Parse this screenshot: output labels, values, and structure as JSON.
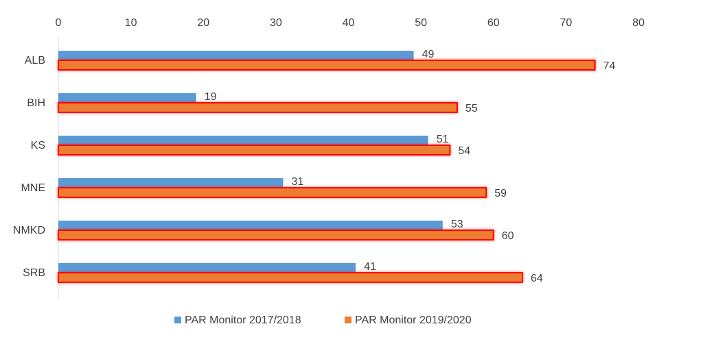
{
  "chart_data": {
    "type": "bar",
    "orientation": "horizontal",
    "categories": [
      "ALB",
      "BIH",
      "KS",
      "MNE",
      "NMKD",
      "SRB"
    ],
    "series": [
      {
        "name": "PAR Monitor 2017/2018",
        "values": [
          49,
          19,
          51,
          31,
          53,
          41
        ],
        "color": "#5b9bd5"
      },
      {
        "name": "PAR Monitor 2019/2020",
        "values": [
          74,
          55,
          54,
          59,
          60,
          64
        ],
        "color": "#ed7d31",
        "outline_color": "#ff0000",
        "highlighted": true
      }
    ],
    "xlim": [
      0,
      80
    ],
    "xticks": [
      0,
      10,
      20,
      30,
      40,
      50,
      60,
      70,
      80
    ],
    "x_axis_position": "top",
    "grid": false,
    "legend_position": "bottom",
    "data_labels": true,
    "title": "",
    "xlabel": "",
    "ylabel": ""
  }
}
